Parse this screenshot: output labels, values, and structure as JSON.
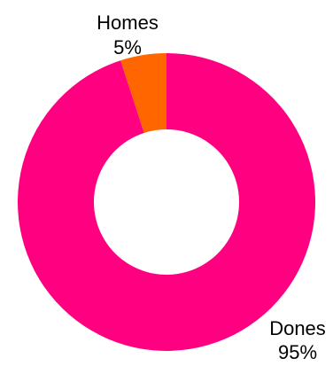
{
  "chart_data": {
    "type": "pie",
    "donut": true,
    "title": "",
    "legend": "none",
    "slices": [
      {
        "label": "Homes",
        "value": 5,
        "percent_label": "5%",
        "color": "#FF6600"
      },
      {
        "label": "Dones",
        "value": 95,
        "percent_label": "95%",
        "color": "#FF0080"
      }
    ]
  }
}
